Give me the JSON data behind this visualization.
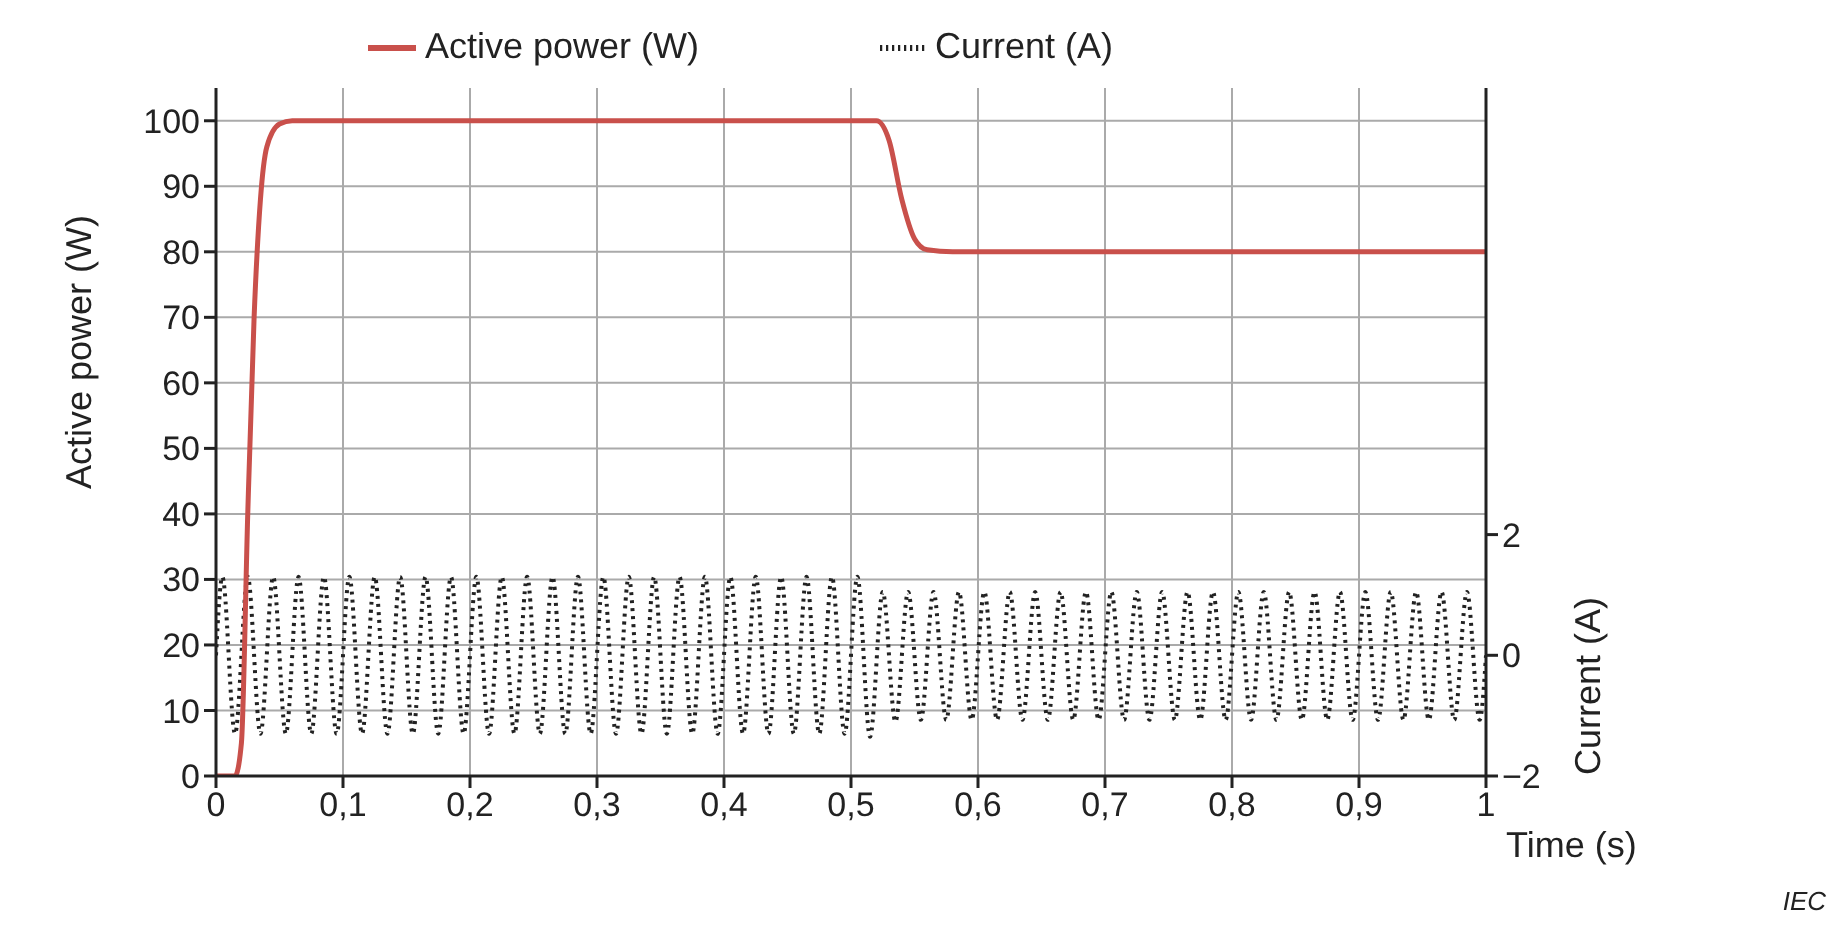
{
  "chart_data": {
    "type": "line",
    "xlabel": "Time  (s)",
    "ylabel": "Active power  (W)",
    "y2label": "Current  (A)",
    "xlim": [
      0,
      1
    ],
    "xticks": [
      0,
      {
        "value": 0.1,
        "label": "0,1"
      },
      {
        "value": 0.2,
        "label": "0,2"
      },
      {
        "value": 0.3,
        "label": "0,3"
      },
      {
        "value": 0.4,
        "label": "0,4"
      },
      {
        "value": 0.5,
        "label": "0,5"
      },
      {
        "value": 0.6,
        "label": "0,6"
      },
      {
        "value": 0.7,
        "label": "0,7"
      },
      {
        "value": 0.8,
        "label": "0,8"
      },
      {
        "value": 0.9,
        "label": "0,9"
      },
      1
    ],
    "ylim": [
      0,
      105
    ],
    "yticks": [
      0,
      10,
      20,
      30,
      40,
      50,
      60,
      70,
      80,
      90,
      100
    ],
    "y2lim": [
      -2,
      9.4
    ],
    "y2ticks": [
      -2,
      0,
      2
    ],
    "grid": true,
    "legend": "top",
    "marker": "none",
    "series": [
      {
        "name": "Current  (A)",
        "color": "#222222",
        "axis": "y2",
        "line_style": "dotted",
        "x": [
          0,
          0.005,
          0.015,
          0.025,
          0.035,
          0.045,
          0.055,
          0.065,
          0.075,
          0.085,
          0.095,
          0.105,
          0.115,
          0.125,
          0.135,
          0.145,
          0.155,
          0.165,
          0.175,
          0.185,
          0.195,
          0.205,
          0.215,
          0.225,
          0.235,
          0.245,
          0.255,
          0.265,
          0.275,
          0.285,
          0.295,
          0.305,
          0.315,
          0.325,
          0.335,
          0.345,
          0.355,
          0.365,
          0.375,
          0.385,
          0.395,
          0.405,
          0.415,
          0.425,
          0.435,
          0.445,
          0.455,
          0.465,
          0.475,
          0.485,
          0.495,
          0.505,
          0.515,
          0.525,
          0.535,
          0.545,
          0.555,
          0.565,
          0.575,
          0.585,
          0.595,
          0.605,
          0.615,
          0.625,
          0.635,
          0.645,
          0.655,
          0.665,
          0.675,
          0.685,
          0.695,
          0.705,
          0.715,
          0.725,
          0.735,
          0.745,
          0.755,
          0.765,
          0.775,
          0.785,
          0.795,
          0.805,
          0.815,
          0.825,
          0.835,
          0.845,
          0.855,
          0.865,
          0.875,
          0.885,
          0.895,
          0.905,
          0.915,
          0.925,
          0.935,
          0.945,
          0.955,
          0.965,
          0.975,
          0.985,
          0.995,
          1
        ],
        "values": [
          0,
          1.3,
          -1.3,
          1.3,
          -1.3,
          1.3,
          -1.3,
          1.3,
          -1.3,
          1.3,
          -1.3,
          1.3,
          -1.3,
          1.3,
          -1.3,
          1.3,
          -1.3,
          1.3,
          -1.3,
          1.3,
          -1.3,
          1.3,
          -1.3,
          1.3,
          -1.3,
          1.3,
          -1.3,
          1.3,
          -1.3,
          1.3,
          -1.3,
          1.3,
          -1.3,
          1.3,
          -1.3,
          1.3,
          -1.3,
          1.3,
          -1.3,
          1.3,
          -1.3,
          1.3,
          -1.3,
          1.3,
          -1.3,
          1.3,
          -1.3,
          1.3,
          -1.3,
          1.3,
          -1.3,
          1.3,
          -1.35,
          1.05,
          -1.1,
          1.05,
          -1.07,
          1.05,
          -1.07,
          1.05,
          -1.07,
          1.05,
          -1.07,
          1.05,
          -1.07,
          1.05,
          -1.07,
          1.05,
          -1.07,
          1.05,
          -1.07,
          1.05,
          -1.07,
          1.05,
          -1.07,
          1.05,
          -1.07,
          1.05,
          -1.07,
          1.05,
          -1.07,
          1.05,
          -1.07,
          1.05,
          -1.07,
          1.05,
          -1.07,
          1.05,
          -1.07,
          1.05,
          -1.07,
          1.05,
          -1.07,
          1.05,
          -1.07,
          1.05,
          -1.07,
          1.05,
          -1.07,
          1.05,
          -1.07,
          0
        ]
      },
      {
        "name": "Active power  (W)",
        "color": "#c9504b",
        "line_style": "solid",
        "x": [
          0,
          0.015,
          0.02,
          0.025,
          0.03,
          0.035,
          0.04,
          0.05,
          0.06,
          0.52,
          0.53,
          0.54,
          0.55,
          0.56,
          0.58,
          1
        ],
        "values": [
          0,
          0,
          5,
          40,
          70,
          88,
          96,
          99.5,
          100,
          100,
          97,
          88,
          82,
          80.3,
          80,
          80
        ]
      }
    ],
    "annotations": [
      "IEC"
    ]
  }
}
